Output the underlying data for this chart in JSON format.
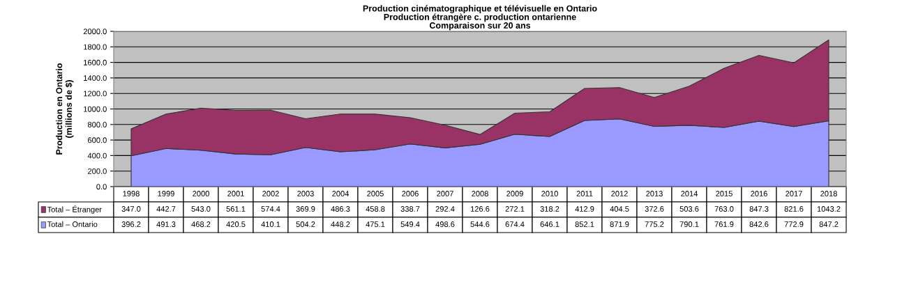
{
  "chart_data": {
    "type": "area",
    "stacked": true,
    "title": "Production cinématographique et télévisuelle en Ontario\nProduction étrangère c. production ontarienne\nComparaison sur 20 ans",
    "ylabel": "Production en Ontario\n(millions de $)",
    "categories": [
      "1998",
      "1999",
      "2000",
      "2001",
      "2002",
      "2003",
      "2004",
      "2005",
      "2006",
      "2007",
      "2008",
      "2009",
      "2010",
      "2011",
      "2012",
      "2013",
      "2014",
      "2015",
      "2016",
      "2017",
      "2018"
    ],
    "series": [
      {
        "name": "Total – Ontario",
        "color": "#9999ff",
        "values": [
          396.2,
          491.3,
          468.2,
          420.5,
          410.1,
          504.2,
          448.2,
          475.1,
          549.4,
          498.6,
          544.6,
          674.4,
          646.1,
          852.1,
          871.9,
          775.2,
          790.1,
          761.9,
          842.6,
          772.9,
          847.2
        ],
        "value_labels": [
          "396.2",
          "491.3",
          "468.2",
          "420.5",
          "410.1",
          "504.2",
          "448.2",
          "475.1",
          "549.4",
          "498.6",
          "544.6",
          "674.4",
          "646.1",
          "852.1",
          "871.9",
          "775.2",
          "790.1",
          "761.9",
          "842.6",
          "772.9",
          "847.2"
        ]
      },
      {
        "name": "Total – Étranger",
        "color": "#993366",
        "values": [
          347.0,
          442.7,
          543.0,
          561.1,
          574.4,
          369.9,
          486.3,
          458.8,
          338.7,
          292.4,
          126.6,
          272.1,
          318.2,
          412.9,
          404.5,
          372.6,
          503.6,
          763.0,
          847.3,
          821.6,
          1043.2
        ],
        "value_labels": [
          "347.0",
          "442.7",
          "543.0",
          "561.1",
          "574.4",
          "369.9",
          "486.3",
          "458.8",
          "338.7",
          "292.4",
          "126.6",
          "272.1",
          "318.2",
          "412.9",
          "404.5",
          "372.6",
          "503.6",
          "763.0",
          "847.3",
          "821.6",
          "1043.2"
        ]
      }
    ],
    "ylim": [
      0,
      2000
    ],
    "yticks": [
      {
        "value": 0,
        "label": "0.0"
      },
      {
        "value": 200,
        "label": "200.0"
      },
      {
        "value": 400,
        "label": "400.0"
      },
      {
        "value": 600,
        "label": "600.0"
      },
      {
        "value": 800,
        "label": "800.0"
      },
      {
        "value": 1000,
        "label": "1000.0"
      },
      {
        "value": 1200,
        "label": "1200.0"
      },
      {
        "value": 1400,
        "label": "1400.0"
      },
      {
        "value": 1600,
        "label": "1600.0"
      },
      {
        "value": 1800,
        "label": "1800.0"
      },
      {
        "value": 2000,
        "label": "2000.0"
      }
    ],
    "grid": "y",
    "legend": "bottom"
  }
}
